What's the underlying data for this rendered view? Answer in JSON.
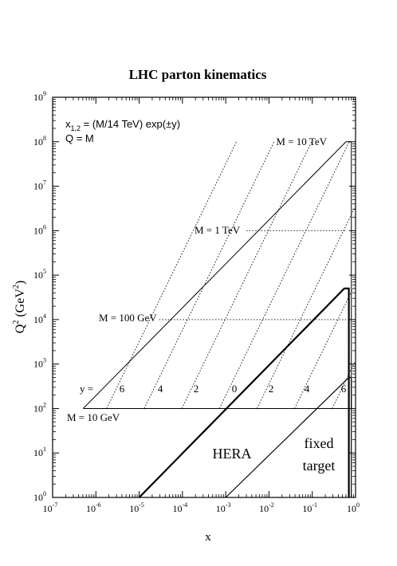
{
  "chart_data": {
    "type": "line",
    "title": "LHC parton kinematics",
    "xlabel": "x",
    "ylabel": "Q",
    "ylabel_sup": "2",
    "ylabel_unit": "(GeV",
    "ylabel_unit_sup": "2",
    "ylabel_unit_close": ")",
    "x_scale": "log",
    "y_scale": "log",
    "xlim_exp": [
      -7,
      0
    ],
    "ylim_exp": [
      0,
      9
    ],
    "x_ticks": [
      {
        "base": "10",
        "exp": "-7",
        "e": -7
      },
      {
        "base": "10",
        "exp": "-6",
        "e": -6
      },
      {
        "base": "10",
        "exp": "-5",
        "e": -5
      },
      {
        "base": "10",
        "exp": "-4",
        "e": -4
      },
      {
        "base": "10",
        "exp": "-3",
        "e": -3
      },
      {
        "base": "10",
        "exp": "-2",
        "e": -2
      },
      {
        "base": "10",
        "exp": "-1",
        "e": -1
      },
      {
        "base": "10",
        "exp": "0",
        "e": 0
      }
    ],
    "y_ticks": [
      {
        "base": "10",
        "exp": "0",
        "e": 0
      },
      {
        "base": "10",
        "exp": "1",
        "e": 1
      },
      {
        "base": "10",
        "exp": "2",
        "e": 2
      },
      {
        "base": "10",
        "exp": "3",
        "e": 3
      },
      {
        "base": "10",
        "exp": "4",
        "e": 4
      },
      {
        "base": "10",
        "exp": "5",
        "e": 5
      },
      {
        "base": "10",
        "exp": "6",
        "e": 6
      },
      {
        "base": "10",
        "exp": "7",
        "e": 7
      },
      {
        "base": "10",
        "exp": "8",
        "e": 8
      },
      {
        "base": "10",
        "exp": "9",
        "e": 9
      }
    ],
    "formula": {
      "lhs": "x",
      "lhs_sub": "1,2",
      "rhs": " = (M/14 TeV) exp(±y)",
      "line2": "Q = M"
    },
    "mass_lines": [
      {
        "label": "M = 10 GeV",
        "Q2": 100,
        "x_range": [
          5.1e-07,
          0.714
        ]
      },
      {
        "label": "M = 100 GeV",
        "Q2": 10000,
        "x_range": [
          2.9e-05,
          0.626
        ]
      },
      {
        "label": "M = 1 TeV",
        "Q2": 1000000,
        "x_range": [
          0.003,
          0.606
        ]
      },
      {
        "label": "M = 10 TeV",
        "Q2": 100000000,
        "x_range": [
          0.476,
          0.8
        ]
      }
    ],
    "kinematic_limit": [
      {
        "x": 5.1e-07,
        "Q2": 100
      },
      {
        "x": 0.6,
        "Q2": 100000000
      },
      {
        "x": 0.8,
        "Q2": 100000000
      }
    ],
    "y_values": [
      {
        "label": "y =",
        "kind": "prefix"
      },
      {
        "label": "6",
        "y": 6,
        "sign": -1
      },
      {
        "label": "4",
        "y": 4,
        "sign": -1
      },
      {
        "label": "2",
        "y": 2,
        "sign": -1
      },
      {
        "label": "0",
        "y": 0,
        "sign": 0
      },
      {
        "label": "2",
        "y": 2,
        "sign": 1
      },
      {
        "label": "4",
        "y": 4,
        "sign": 1
      },
      {
        "label": "6",
        "y": 6,
        "sign": 1
      }
    ],
    "hera_boundary": [
      {
        "x": 1e-05,
        "Q2": 1
      },
      {
        "x": 0.55,
        "Q2": 50000
      },
      {
        "x": 0.7,
        "Q2": 50000
      },
      {
        "x": 0.7,
        "Q2": 1
      }
    ],
    "fixed_target_boundary": [
      {
        "x": 0.001,
        "Q2": 1
      },
      {
        "x": 0.7,
        "Q2": 500
      },
      {
        "x": 0.8,
        "Q2": 500
      },
      {
        "x": 0.8,
        "Q2": 1
      }
    ],
    "regions": [
      {
        "label": "HERA",
        "x": 0.003,
        "Q2": 10
      },
      {
        "label": "fixed",
        "x": 0.15,
        "Q2": 15
      },
      {
        "label": "target",
        "x": 0.15,
        "Q2": 3.5
      }
    ]
  }
}
